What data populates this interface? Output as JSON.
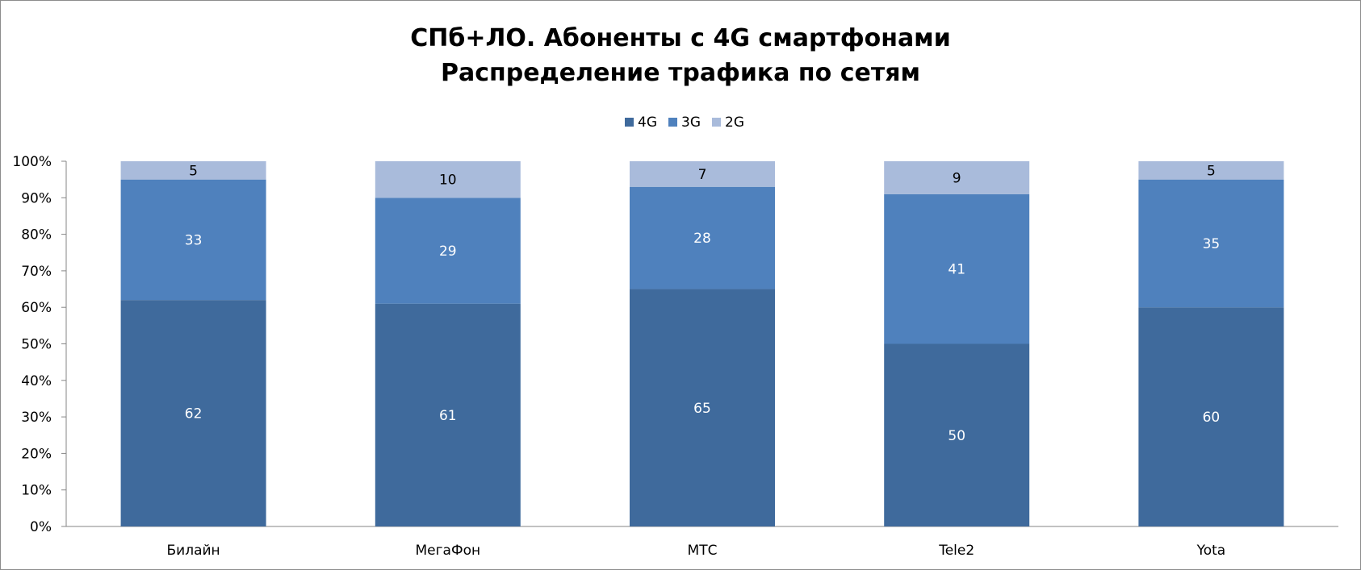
{
  "chart_data": {
    "type": "bar",
    "stacked": true,
    "percent_stacked": true,
    "title": "СПб+ЛО. Абоненты с 4G смартфонами",
    "subtitle": "Распределение трафика по сетям",
    "categories": [
      "Билайн",
      "МегаФон",
      "МТС",
      "Tele2",
      "Yota"
    ],
    "series": [
      {
        "name": "4G",
        "values": [
          62,
          61,
          65,
          50,
          60
        ],
        "color": "#3f6a9c",
        "label_color": "#ffffff"
      },
      {
        "name": "3G",
        "values": [
          33,
          29,
          28,
          41,
          35
        ],
        "color": "#4f81bd",
        "label_color": "#ffffff"
      },
      {
        "name": "2G",
        "values": [
          5,
          10,
          7,
          9,
          5
        ],
        "color": "#a9bbdb",
        "label_color": "#000000"
      }
    ],
    "y_ticks": [
      "0%",
      "10%",
      "20%",
      "30%",
      "40%",
      "50%",
      "60%",
      "70%",
      "80%",
      "90%",
      "100%"
    ],
    "ylim": [
      0,
      100
    ],
    "grid": false,
    "legend_position": "top-center",
    "data_labels": true
  }
}
